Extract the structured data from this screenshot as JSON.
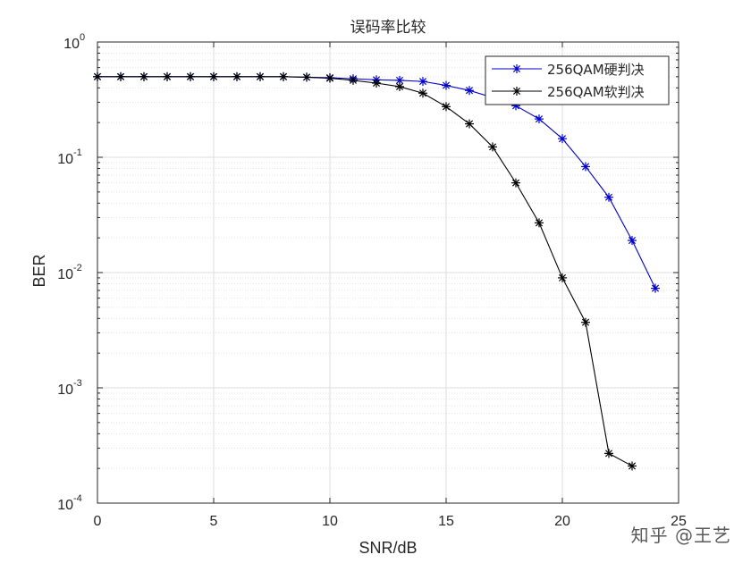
{
  "chart_data": {
    "type": "line",
    "title": "误码率比较",
    "xlabel": "SNR/dB",
    "ylabel": "BER",
    "xlim": [
      0,
      25
    ],
    "ylim": [
      0.0001,
      1
    ],
    "yscale": "log",
    "grid": true,
    "minor_grid": true,
    "legend_position": "top-right",
    "xticks": [
      "0",
      "5",
      "10",
      "15",
      "20",
      "25"
    ],
    "yticks": [
      {
        "base": "10",
        "exp": "0"
      },
      {
        "base": "10",
        "exp": "-1"
      },
      {
        "base": "10",
        "exp": "-2"
      },
      {
        "base": "10",
        "exp": "-3"
      },
      {
        "base": "10",
        "exp": "-4"
      }
    ],
    "series": [
      {
        "name": "256QAM硬判决",
        "color": "#0000cc",
        "marker": "asterisk",
        "x": [
          0,
          1,
          2,
          3,
          4,
          5,
          6,
          7,
          8,
          9,
          10,
          11,
          12,
          13,
          14,
          15,
          16,
          17,
          18,
          19,
          20,
          21,
          22,
          23,
          24
        ],
        "y": [
          0.5,
          0.5,
          0.5,
          0.5,
          0.5,
          0.5,
          0.5,
          0.5,
          0.5,
          0.495,
          0.49,
          0.48,
          0.47,
          0.465,
          0.455,
          0.42,
          0.38,
          0.33,
          0.28,
          0.215,
          0.145,
          0.083,
          0.045,
          0.019,
          0.0073
        ]
      },
      {
        "name": "256QAM软判决",
        "color": "#000000",
        "marker": "asterisk",
        "x": [
          0,
          1,
          2,
          3,
          4,
          5,
          6,
          7,
          8,
          9,
          10,
          11,
          12,
          13,
          14,
          15,
          16,
          17,
          18,
          19,
          20,
          21,
          22,
          23
        ],
        "y": [
          0.5,
          0.5,
          0.5,
          0.5,
          0.5,
          0.5,
          0.5,
          0.5,
          0.5,
          0.495,
          0.485,
          0.465,
          0.44,
          0.41,
          0.36,
          0.275,
          0.195,
          0.123,
          0.06,
          0.027,
          0.009,
          0.0037,
          0.00027,
          0.00021
        ]
      }
    ]
  },
  "watermark": "知乎 @王艺"
}
